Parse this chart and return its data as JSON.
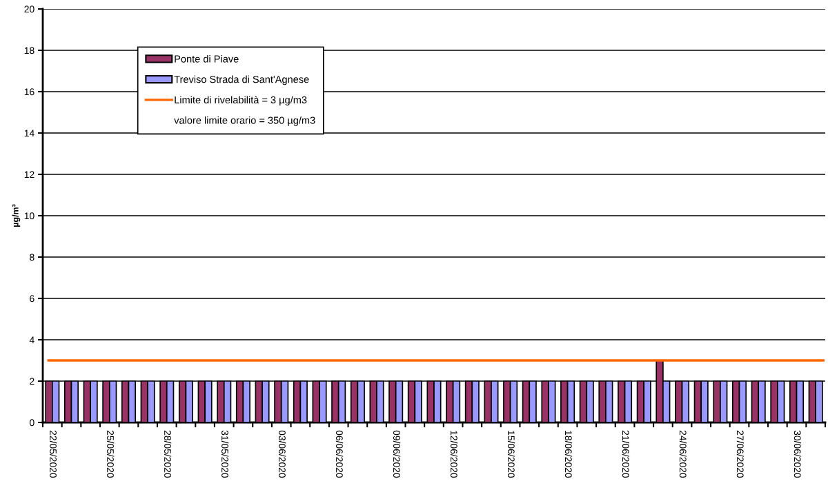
{
  "chart_data": {
    "type": "bar",
    "ylabel": "µg/m³",
    "categories": [
      "22/05/2020",
      null,
      null,
      "25/05/2020",
      null,
      null,
      "28/05/2020",
      null,
      null,
      "31/05/2020",
      null,
      null,
      "03/06/2020",
      null,
      null,
      "06/06/2020",
      null,
      null,
      "09/06/2020",
      null,
      null,
      "12/06/2020",
      null,
      null,
      "15/06/2020",
      null,
      null,
      "18/06/2020",
      null,
      null,
      "21/06/2020",
      null,
      null,
      "24/06/2020",
      null,
      null,
      "27/06/2020",
      null,
      null,
      "30/06/2020",
      null
    ],
    "series": [
      {
        "name": "Ponte di Piave",
        "color": "#993366",
        "values": [
          2,
          2,
          2,
          2,
          2,
          2,
          2,
          2,
          2,
          2,
          2,
          2,
          2,
          2,
          2,
          2,
          2,
          2,
          2,
          2,
          2,
          2,
          2,
          2,
          2,
          2,
          2,
          2,
          2,
          2,
          2,
          2,
          3,
          2,
          2,
          2,
          2,
          2,
          2,
          2,
          2
        ]
      },
      {
        "name": "Treviso Strada di Sant'Agnese",
        "color": "#9999ff",
        "values": [
          2,
          2,
          2,
          2,
          2,
          2,
          2,
          2,
          2,
          2,
          2,
          2,
          2,
          2,
          2,
          2,
          2,
          2,
          2,
          2,
          2,
          2,
          2,
          2,
          2,
          2,
          2,
          2,
          2,
          2,
          2,
          2,
          2,
          2,
          2,
          2,
          2,
          2,
          2,
          2,
          2
        ]
      }
    ],
    "ref_lines": [
      {
        "axis": "y",
        "value": 3,
        "label": "Limite di rivelabilità = 3 µg/m3",
        "color": "#ff6600"
      }
    ],
    "annotations": [
      "valore limite orario = 350 µg/m3"
    ],
    "ylim": [
      0,
      20
    ],
    "yticks": [
      0,
      2,
      4,
      6,
      8,
      10,
      12,
      14,
      16,
      18,
      20
    ],
    "grid": "y",
    "legend": "top left"
  }
}
